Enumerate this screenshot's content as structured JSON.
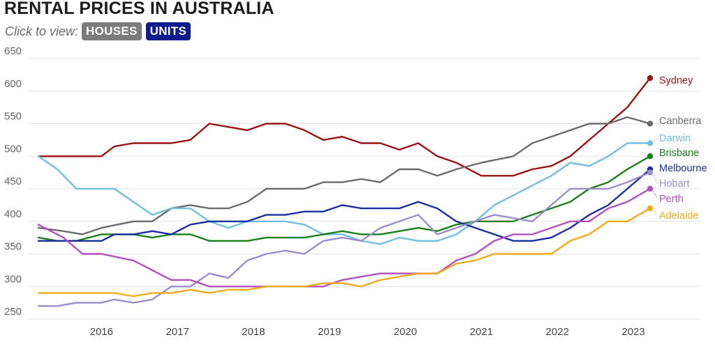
{
  "title": "RENTAL PRICES IN AUSTRALIA",
  "toggle": {
    "prompt": "Click to view:",
    "options": [
      "HOUSES",
      "UNITS"
    ],
    "selected": "UNITS"
  },
  "colors": {
    "houses_button": "#7c7c7c",
    "units_button": "#0d1b8c"
  },
  "chart_data": {
    "type": "line",
    "title": "RENTAL PRICES IN AUSTRALIA",
    "xlabel": "",
    "ylabel": "",
    "x_ticks": [
      "2016",
      "2017",
      "2018",
      "2019",
      "2020",
      "2021",
      "2022",
      "2023"
    ],
    "x_range": [
      2015.17,
      2023.22
    ],
    "ylim": [
      250,
      650
    ],
    "y_ticks": [
      250,
      300,
      350,
      400,
      450,
      500,
      550,
      600,
      650
    ],
    "grid": "horizontal",
    "legend": "labels at line ends (right)",
    "series": [
      {
        "name": "Sydney",
        "color": "#9b1111",
        "x": [
          2015.17,
          2015.5,
          2015.75,
          2016.0,
          2016.17,
          2016.42,
          2016.67,
          2016.92,
          2017.17,
          2017.42,
          2017.67,
          2017.92,
          2018.17,
          2018.42,
          2018.67,
          2018.92,
          2019.17,
          2019.42,
          2019.67,
          2019.92,
          2020.17,
          2020.42,
          2020.67,
          2021.0,
          2021.42,
          2021.67,
          2021.92,
          2022.17,
          2022.42,
          2022.67,
          2022.92,
          2023.22
        ],
        "y": [
          500,
          500,
          500,
          500,
          515,
          520,
          520,
          520,
          525,
          550,
          545,
          540,
          550,
          550,
          540,
          525,
          530,
          520,
          520,
          510,
          520,
          500,
          490,
          470,
          470,
          480,
          485,
          500,
          525,
          550,
          575,
          620
        ]
      },
      {
        "name": "Canberra",
        "color": "#6b6b6b",
        "x": [
          2015.17,
          2015.5,
          2015.75,
          2016.0,
          2016.42,
          2016.67,
          2016.92,
          2017.17,
          2017.42,
          2017.67,
          2017.92,
          2018.17,
          2018.42,
          2018.67,
          2018.92,
          2019.17,
          2019.42,
          2019.67,
          2019.92,
          2020.17,
          2020.42,
          2020.67,
          2021.0,
          2021.42,
          2021.67,
          2021.92,
          2022.17,
          2022.42,
          2022.67,
          2022.92,
          2023.22
        ],
        "y": [
          390,
          385,
          380,
          390,
          400,
          400,
          420,
          425,
          420,
          420,
          430,
          450,
          450,
          450,
          460,
          460,
          465,
          460,
          480,
          480,
          470,
          480,
          490,
          500,
          520,
          530,
          540,
          550,
          550,
          560,
          550
        ]
      },
      {
        "name": "Darwin",
        "color": "#6fbfe2",
        "x": [
          2015.17,
          2015.42,
          2015.67,
          2016.0,
          2016.17,
          2016.42,
          2016.67,
          2016.92,
          2017.17,
          2017.42,
          2017.67,
          2017.92,
          2018.17,
          2018.42,
          2018.67,
          2018.92,
          2019.17,
          2019.42,
          2019.67,
          2019.92,
          2020.17,
          2020.42,
          2020.67,
          2020.92,
          2021.17,
          2021.42,
          2021.67,
          2021.92,
          2022.17,
          2022.42,
          2022.67,
          2022.92,
          2023.22
        ],
        "y": [
          500,
          480,
          450,
          450,
          450,
          430,
          410,
          420,
          420,
          400,
          390,
          400,
          400,
          400,
          395,
          380,
          380,
          370,
          365,
          375,
          370,
          370,
          380,
          400,
          425,
          440,
          455,
          470,
          490,
          485,
          500,
          520,
          520
        ]
      },
      {
        "name": "Brisbane",
        "color": "#198019",
        "x": [
          2015.17,
          2015.42,
          2015.67,
          2016.0,
          2016.17,
          2016.42,
          2016.67,
          2016.92,
          2017.17,
          2017.42,
          2017.67,
          2017.92,
          2018.17,
          2018.42,
          2018.67,
          2018.92,
          2019.17,
          2019.42,
          2019.67,
          2019.92,
          2020.17,
          2020.42,
          2020.67,
          2020.92,
          2021.17,
          2021.42,
          2021.67,
          2021.92,
          2022.17,
          2022.42,
          2022.67,
          2022.92,
          2023.22
        ],
        "y": [
          375,
          370,
          370,
          380,
          380,
          380,
          375,
          380,
          380,
          370,
          370,
          370,
          375,
          375,
          375,
          380,
          385,
          380,
          380,
          385,
          390,
          385,
          395,
          400,
          400,
          400,
          410,
          420,
          430,
          450,
          460,
          480,
          500
        ]
      },
      {
        "name": "Melbourne",
        "color": "#1a2ea0",
        "x": [
          2015.17,
          2015.42,
          2015.67,
          2016.0,
          2016.17,
          2016.42,
          2016.67,
          2016.92,
          2017.17,
          2017.42,
          2017.67,
          2017.92,
          2018.17,
          2018.42,
          2018.67,
          2018.92,
          2019.17,
          2019.42,
          2019.67,
          2019.92,
          2020.17,
          2020.42,
          2020.67,
          2020.92,
          2021.17,
          2021.42,
          2021.67,
          2021.92,
          2022.17,
          2022.42,
          2022.67,
          2022.92,
          2023.22
        ],
        "y": [
          370,
          370,
          370,
          370,
          380,
          380,
          385,
          380,
          395,
          400,
          400,
          400,
          410,
          410,
          415,
          415,
          425,
          420,
          420,
          420,
          430,
          420,
          400,
          390,
          380,
          370,
          370,
          375,
          390,
          410,
          425,
          450,
          480
        ]
      },
      {
        "name": "Hobart",
        "color": "#9b8ccc",
        "x": [
          2015.17,
          2015.42,
          2015.67,
          2016.0,
          2016.17,
          2016.42,
          2016.67,
          2016.92,
          2017.17,
          2017.42,
          2017.67,
          2017.92,
          2018.17,
          2018.42,
          2018.67,
          2018.92,
          2019.17,
          2019.42,
          2019.67,
          2019.92,
          2020.17,
          2020.42,
          2020.67,
          2020.92,
          2021.17,
          2021.42,
          2021.67,
          2021.92,
          2022.17,
          2022.42,
          2022.67,
          2022.92,
          2023.22
        ],
        "y": [
          270,
          270,
          275,
          275,
          280,
          275,
          280,
          300,
          300,
          320,
          313,
          340,
          350,
          355,
          350,
          370,
          375,
          370,
          390,
          400,
          410,
          380,
          390,
          400,
          410,
          405,
          400,
          425,
          450,
          450,
          450,
          460,
          475
        ]
      },
      {
        "name": "Perth",
        "color": "#b44fc0",
        "x": [
          2015.17,
          2015.5,
          2015.75,
          2016.0,
          2016.42,
          2016.67,
          2016.92,
          2017.17,
          2017.42,
          2017.67,
          2017.92,
          2018.17,
          2018.42,
          2018.67,
          2018.92,
          2019.17,
          2019.42,
          2019.67,
          2019.92,
          2020.17,
          2020.42,
          2020.67,
          2020.92,
          2021.17,
          2021.42,
          2021.67,
          2021.92,
          2022.17,
          2022.42,
          2022.67,
          2022.92,
          2023.22
        ],
        "y": [
          395,
          375,
          350,
          350,
          340,
          325,
          310,
          310,
          300,
          300,
          300,
          300,
          300,
          300,
          300,
          310,
          315,
          320,
          320,
          320,
          320,
          340,
          350,
          370,
          380,
          380,
          390,
          400,
          400,
          420,
          430,
          450
        ]
      },
      {
        "name": "Adelaide",
        "color": "#f0aa1e",
        "x": [
          2015.17,
          2015.42,
          2015.67,
          2016.0,
          2016.17,
          2016.42,
          2016.67,
          2016.92,
          2017.17,
          2017.42,
          2017.67,
          2017.92,
          2018.17,
          2018.42,
          2018.67,
          2018.92,
          2019.17,
          2019.42,
          2019.67,
          2019.92,
          2020.17,
          2020.42,
          2020.67,
          2020.92,
          2021.17,
          2021.42,
          2021.67,
          2021.92,
          2022.17,
          2022.42,
          2022.67,
          2022.92,
          2023.22
        ],
        "y": [
          290,
          290,
          290,
          290,
          290,
          285,
          290,
          290,
          295,
          290,
          295,
          295,
          300,
          300,
          300,
          305,
          305,
          300,
          310,
          315,
          320,
          320,
          335,
          340,
          350,
          350,
          350,
          350,
          370,
          380,
          400,
          400,
          420
        ]
      }
    ]
  }
}
